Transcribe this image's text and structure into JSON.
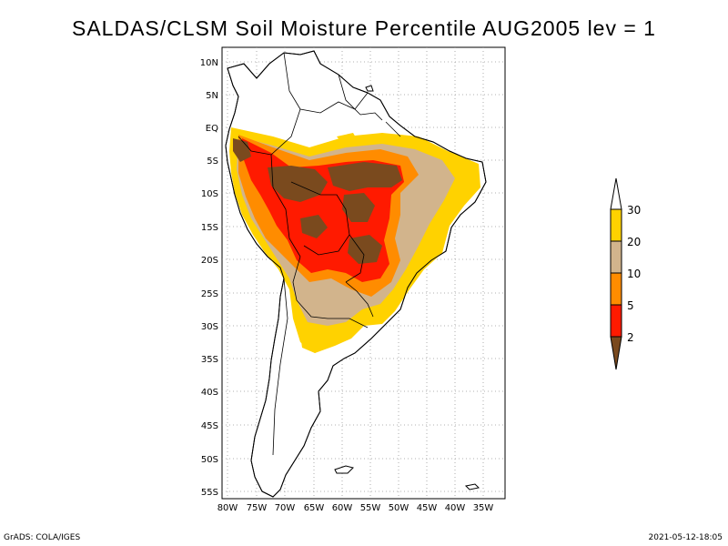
{
  "title": "SALDAS/CLSM Soil Moisture Percentile AUG2005 lev = 1",
  "footer": {
    "left": "GrADS: COLA/IGES",
    "right": "2021-05-12-18:05"
  },
  "map": {
    "lat_labels": [
      "10N",
      "5N",
      "EQ",
      "5S",
      "10S",
      "15S",
      "20S",
      "25S",
      "30S",
      "35S",
      "40S",
      "45S",
      "50S",
      "55S"
    ],
    "lon_labels": [
      "80W",
      "75W",
      "70W",
      "65W",
      "60W",
      "55W",
      "50W",
      "45W",
      "40W",
      "35W"
    ]
  },
  "legend": {
    "labels": [
      "30",
      "20",
      "10",
      "5",
      "2"
    ],
    "colors": {
      "lt2": "#7a4a1e",
      "2to5": "#ff1a00",
      "5to10": "#ff8c00",
      "10to20": "#d2b48c",
      "20to30": "#ffd200",
      "gt30": "#ffffff"
    }
  }
}
